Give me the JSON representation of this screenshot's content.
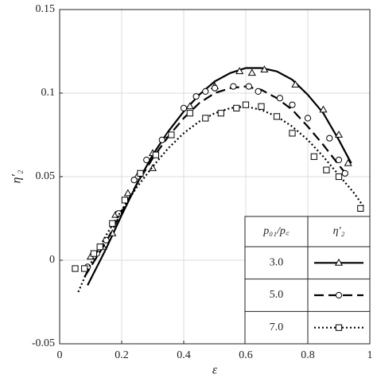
{
  "chart_data": {
    "type": "line",
    "x_label": "ε",
    "y_label": "η′₂",
    "xlim": [
      0,
      1
    ],
    "xticks": [
      0,
      0.2,
      0.4,
      0.6,
      0.8,
      1
    ],
    "ylim": [
      -0.05,
      0.15
    ],
    "yticks": [
      -0.05,
      0,
      0.05,
      0.1,
      0.15
    ],
    "grid": true,
    "legend": "lower right",
    "legend_header": [
      "p₀₁/p꜀",
      "η′₂"
    ],
    "series": [
      {
        "name": "3.0",
        "color": "#000000",
        "marker": "triangle",
        "dash": "solid",
        "x": [
          0.09,
          0.15,
          0.2,
          0.25,
          0.3,
          0.35,
          0.4,
          0.45,
          0.5,
          0.55,
          0.6,
          0.65,
          0.7,
          0.75,
          0.8,
          0.85,
          0.9,
          0.94
        ],
        "values": [
          -0.015,
          0.007,
          0.027,
          0.046,
          0.063,
          0.077,
          0.089,
          0.099,
          0.107,
          0.112,
          0.115,
          0.115,
          0.113,
          0.108,
          0.099,
          0.088,
          0.072,
          0.058
        ],
        "points": {
          "x": [
            0.1,
            0.14,
            0.17,
            0.18,
            0.22,
            0.25,
            0.3,
            0.3,
            0.35,
            0.42,
            0.5,
            0.58,
            0.62,
            0.66,
            0.76,
            0.85,
            0.9,
            0.93
          ],
          "values": [
            0.002,
            0.008,
            0.016,
            0.027,
            0.04,
            0.05,
            0.055,
            0.064,
            0.075,
            0.092,
            0.104,
            0.113,
            0.112,
            0.114,
            0.105,
            0.09,
            0.075,
            0.058
          ]
        }
      },
      {
        "name": "5.0",
        "color": "#000000",
        "marker": "circle",
        "dash": "dashed",
        "x": [
          0.08,
          0.15,
          0.2,
          0.25,
          0.3,
          0.35,
          0.4,
          0.45,
          0.5,
          0.55,
          0.6,
          0.65,
          0.7,
          0.75,
          0.8,
          0.85,
          0.9,
          0.93
        ],
        "values": [
          -0.01,
          0.011,
          0.029,
          0.046,
          0.061,
          0.074,
          0.085,
          0.094,
          0.1,
          0.103,
          0.104,
          0.102,
          0.097,
          0.09,
          0.08,
          0.069,
          0.057,
          0.05
        ],
        "points": {
          "x": [
            0.09,
            0.12,
            0.15,
            0.19,
            0.24,
            0.28,
            0.33,
            0.4,
            0.44,
            0.47,
            0.5,
            0.56,
            0.61,
            0.64,
            0.71,
            0.75,
            0.8,
            0.87,
            0.9,
            0.92
          ],
          "values": [
            -0.004,
            0.004,
            0.012,
            0.028,
            0.048,
            0.06,
            0.072,
            0.091,
            0.098,
            0.101,
            0.103,
            0.104,
            0.104,
            0.101,
            0.097,
            0.093,
            0.085,
            0.073,
            0.06,
            0.052
          ]
        }
      },
      {
        "name": "7.0",
        "color": "#000000",
        "marker": "square",
        "dash": "dotted",
        "x": [
          0.06,
          0.1,
          0.15,
          0.2,
          0.25,
          0.3,
          0.35,
          0.4,
          0.45,
          0.5,
          0.55,
          0.6,
          0.65,
          0.7,
          0.75,
          0.8,
          0.85,
          0.9,
          0.95,
          0.98
        ],
        "values": [
          -0.019,
          -0.002,
          0.015,
          0.03,
          0.044,
          0.056,
          0.067,
          0.076,
          0.083,
          0.088,
          0.091,
          0.092,
          0.09,
          0.086,
          0.08,
          0.072,
          0.062,
          0.051,
          0.04,
          0.032
        ],
        "points": {
          "x": [
            0.05,
            0.08,
            0.11,
            0.13,
            0.17,
            0.21,
            0.26,
            0.31,
            0.36,
            0.42,
            0.47,
            0.52,
            0.57,
            0.6,
            0.65,
            0.7,
            0.75,
            0.82,
            0.86,
            0.9,
            0.97
          ],
          "values": [
            -0.005,
            -0.005,
            0.004,
            0.008,
            0.022,
            0.036,
            0.052,
            0.063,
            0.075,
            0.088,
            0.085,
            0.088,
            0.091,
            0.093,
            0.092,
            0.086,
            0.076,
            0.062,
            0.054,
            0.05,
            0.031
          ]
        }
      }
    ]
  }
}
